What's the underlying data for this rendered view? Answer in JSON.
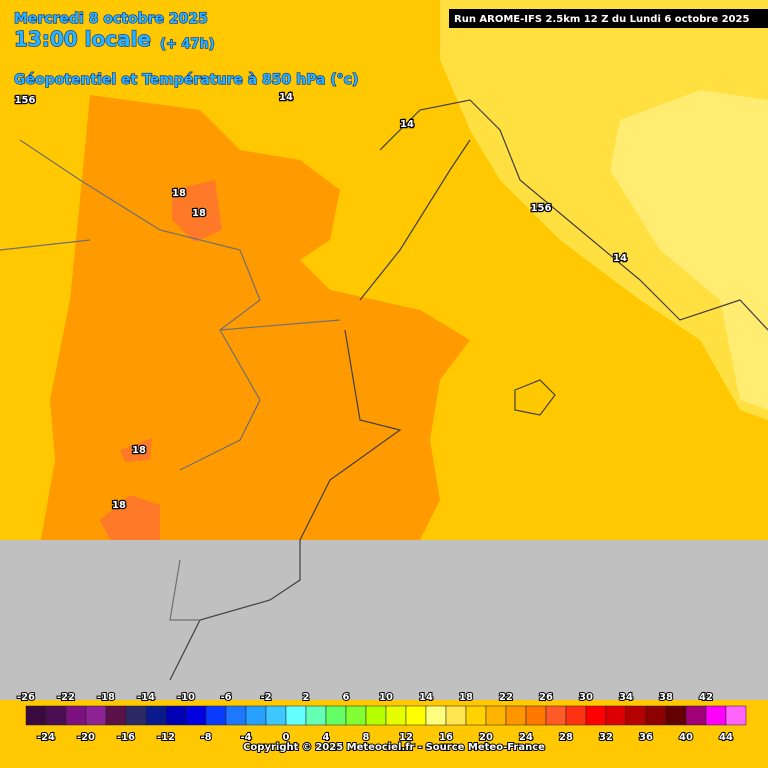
{
  "header": {
    "date": "Mercredi 8 octobre 2025",
    "time": "13:00 locale",
    "lead": "(+ 47h)",
    "field": "Géopotentiel et Température à 850 hPa (°c)",
    "run": "Run AROME-IFS 2.5km 12 Z du Lundi 6 octobre 2025"
  },
  "contour_labels": [
    "156",
    "14",
    "14",
    "156",
    "14",
    "18",
    "18",
    "18",
    "18"
  ],
  "legend": {
    "top_labels": [
      -26,
      -22,
      -18,
      -14,
      -10,
      -6,
      -2,
      2,
      6,
      10,
      14,
      18,
      22,
      26,
      30,
      34,
      38,
      42
    ],
    "bottom_labels": [
      -24,
      -20,
      -16,
      -12,
      -8,
      -4,
      0,
      4,
      8,
      12,
      16,
      20,
      24,
      28,
      32,
      36,
      40,
      44
    ],
    "colors": [
      "#3a0a3f",
      "#4c0e52",
      "#7c1280",
      "#8e2396",
      "#5a1049",
      "#2b2a66",
      "#0a1a8c",
      "#0000b4",
      "#0000e0",
      "#0a3cff",
      "#1e78ff",
      "#28a0ff",
      "#3cc8ff",
      "#64ffff",
      "#64ffb4",
      "#64ff64",
      "#82ff32",
      "#b4ff00",
      "#e6ff00",
      "#ffff00",
      "#ffff80",
      "#ffe650",
      "#ffd200",
      "#ffb400",
      "#ff9600",
      "#ff7800",
      "#ff5a28",
      "#ff3214",
      "#ff0000",
      "#dc0000",
      "#b40000",
      "#8c0000",
      "#640000",
      "#a00078",
      "#ff00ff",
      "#ff64ff"
    ]
  },
  "copyright": "Copyright © 2025 Meteociel.fr - Source Meteo-France"
}
